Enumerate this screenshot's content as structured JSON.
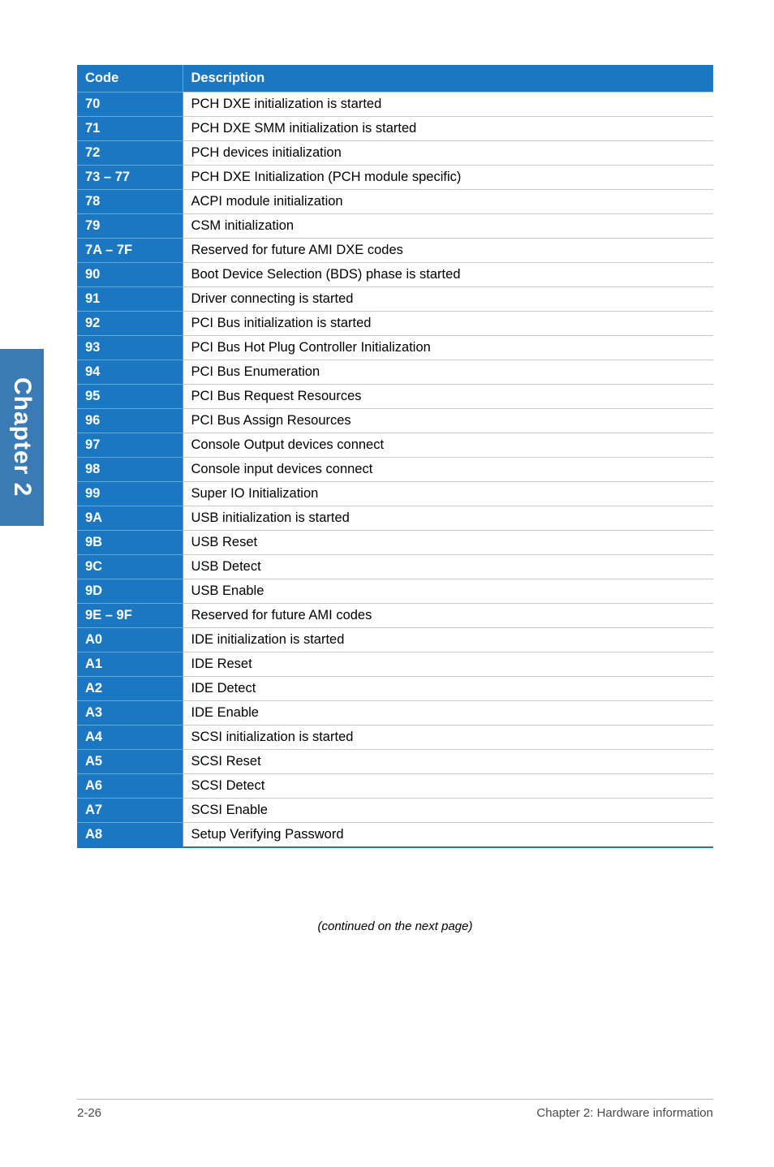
{
  "sidebar_tab": {
    "label": "Chapter 2"
  },
  "table": {
    "headers": {
      "code": "Code",
      "description": "Description"
    },
    "rows": [
      {
        "code": "70",
        "desc": "PCH DXE initialization is started"
      },
      {
        "code": "71",
        "desc": "PCH DXE SMM initialization is started"
      },
      {
        "code": "72",
        "desc": "PCH devices initialization"
      },
      {
        "code": "73 – 77",
        "desc": "PCH DXE Initialization (PCH module specific)"
      },
      {
        "code": "78",
        "desc": "ACPI module initialization"
      },
      {
        "code": "79",
        "desc": "CSM  initialization"
      },
      {
        "code": "7A – 7F",
        "desc": "Reserved for future AMI DXE codes"
      },
      {
        "code": "90",
        "desc": "Boot Device Selection (BDS) phase is started"
      },
      {
        "code": "91",
        "desc": "Driver connecting is started"
      },
      {
        "code": "92",
        "desc": "PCI Bus initialization is started"
      },
      {
        "code": "93",
        "desc": "PCI Bus Hot Plug Controller Initialization"
      },
      {
        "code": "94",
        "desc": "PCI Bus Enumeration"
      },
      {
        "code": "95",
        "desc": "PCI Bus Request Resources"
      },
      {
        "code": "96",
        "desc": "PCI Bus Assign Resources"
      },
      {
        "code": "97",
        "desc": "Console Output devices connect"
      },
      {
        "code": "98",
        "desc": "Console input devices connect"
      },
      {
        "code": "99",
        "desc": "Super IO Initialization"
      },
      {
        "code": "9A",
        "desc": "USB initialization is started"
      },
      {
        "code": "9B",
        "desc": "USB Reset"
      },
      {
        "code": "9C",
        "desc": "USB Detect"
      },
      {
        "code": "9D",
        "desc": "USB Enable"
      },
      {
        "code": "9E – 9F",
        "desc": "Reserved for future AMI codes"
      },
      {
        "code": "A0",
        "desc": "IDE initialization is started"
      },
      {
        "code": "A1",
        "desc": "IDE Reset"
      },
      {
        "code": "A2",
        "desc": "IDE Detect"
      },
      {
        "code": "A3",
        "desc": "IDE Enable"
      },
      {
        "code": "A4",
        "desc": "SCSI initialization is started"
      },
      {
        "code": "A5",
        "desc": "SCSI Reset"
      },
      {
        "code": "A6",
        "desc": "SCSI Detect"
      },
      {
        "code": "A7",
        "desc": "SCSI Enable"
      },
      {
        "code": "A8",
        "desc": "Setup Verifying Password"
      }
    ],
    "header_bg": "#1c77c3",
    "header_fg": "#ffffff",
    "code_bg": "#1c77c3",
    "code_fg": "#ffffff",
    "row_border": "#c9c9c9",
    "code_border": "#6aa6d4"
  },
  "continued_text": "(continued on the next page)",
  "footer": {
    "left": "2-26",
    "right": "Chapter 2: Hardware information"
  }
}
